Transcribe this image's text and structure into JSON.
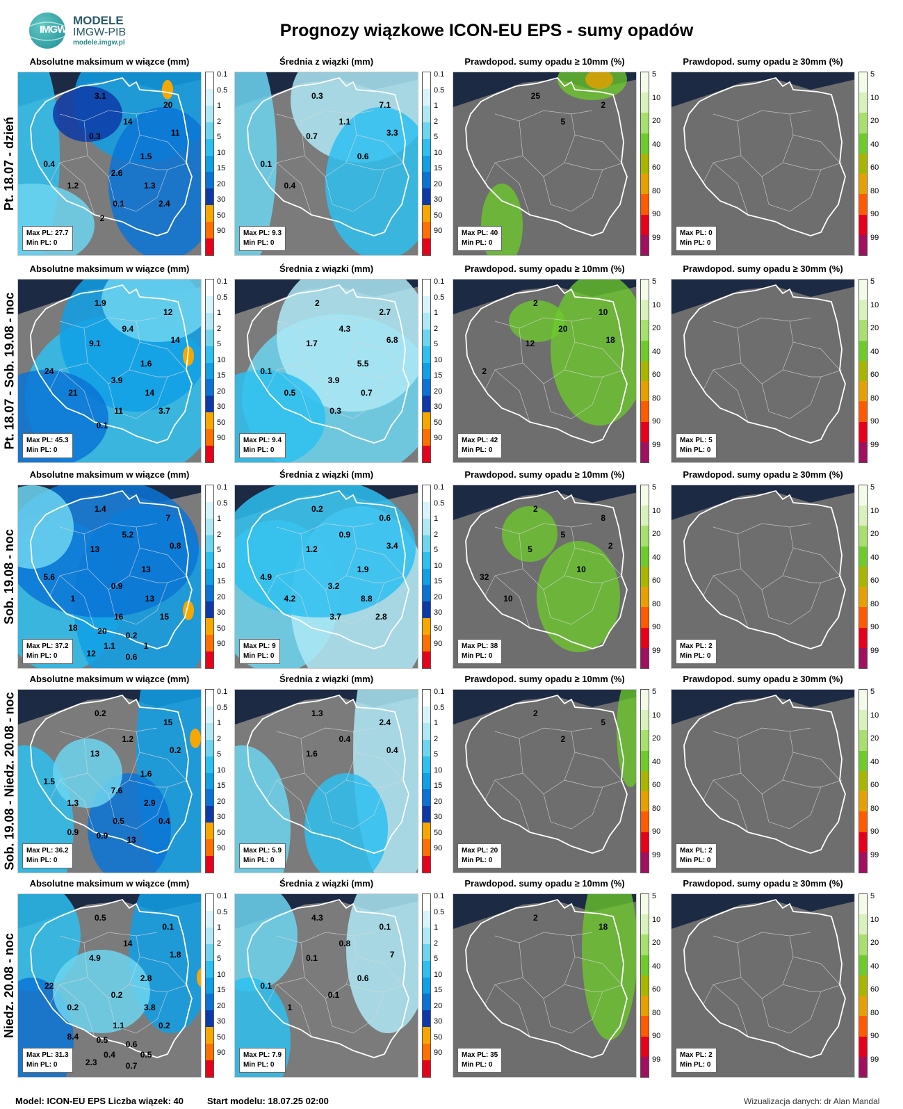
{
  "header": {
    "logo_text": "IMGW",
    "brand_line1": "MODELE",
    "brand_line2": "IMGW-PIB",
    "brand_url": "modele.imgw.pl",
    "title": "Prognozy wiązkowe ICON-EU EPS - sumy opadów"
  },
  "columns": [
    {
      "title": "Absolutne maksimum w wiązce (mm)",
      "type": "precip"
    },
    {
      "title": "Średnia z wiązki (mm)",
      "type": "precip"
    },
    {
      "title": "Prawdopod. sumy opadu ≥ 10mm (%)",
      "type": "prob"
    },
    {
      "title": "Prawdopod. sumy opadu ≥ 30mm (%)",
      "type": "prob"
    }
  ],
  "legends": {
    "precip": {
      "ticks": [
        "0.1",
        "0.5",
        "1",
        "2",
        "5",
        "10",
        "15",
        "20",
        "30",
        "50",
        "90"
      ],
      "colors": [
        "#ffffff",
        "#d9f3fa",
        "#aee8f5",
        "#6dd5f0",
        "#2ec0f0",
        "#10a0e6",
        "#0a74d6",
        "#0d3aa8",
        "#f7a800",
        "#ff7000",
        "#e8001a"
      ]
    },
    "prob": {
      "ticks": [
        "5",
        "10",
        "20",
        "40",
        "60",
        "80",
        "90",
        "99"
      ],
      "colors": [
        "#f3fbe9",
        "#d9f2bb",
        "#a7e06a",
        "#6dcc2a",
        "#a9b600",
        "#e7a000",
        "#ff5a00",
        "#e8001a",
        "#a0105e"
      ]
    }
  },
  "rows": [
    {
      "label": "Pt. 18.07 - dzień",
      "panels": [
        {
          "max": "Max PL: 27.7",
          "min": "Min PL: 0",
          "labels": [
            "3.1",
            "20",
            "14",
            "11",
            "0.3",
            "0.4",
            "1.5",
            "1.2",
            "2.6",
            "1.3",
            "0.1",
            "2.4",
            "2"
          ]
        },
        {
          "max": "Max PL: 9.3",
          "min": "Min PL: 0",
          "labels": [
            "0.3",
            "7.1",
            "1.1",
            "3.3",
            "0.7",
            "0.1",
            "0.6",
            "0.4"
          ]
        },
        {
          "max": "Max PL: 40",
          "min": "Min PL: 0",
          "labels": [
            "25",
            "2",
            "5"
          ]
        },
        {
          "max": "Max PL: 0",
          "min": "Min PL: 0",
          "labels": []
        }
      ]
    },
    {
      "label": "Pt. 18.07 - Sob. 19.08 - noc",
      "panels": [
        {
          "max": "Max PL: 45.3",
          "min": "Min PL: 0",
          "labels": [
            "1.9",
            "12",
            "9.4",
            "14",
            "9.1",
            "24",
            "1.6",
            "21",
            "3.9",
            "14",
            "11",
            "3.7",
            "0.1"
          ]
        },
        {
          "max": "Max PL: 9.4",
          "min": "Min PL: 0",
          "labels": [
            "2",
            "2.7",
            "4.3",
            "6.8",
            "1.7",
            "0.1",
            "5.5",
            "0.5",
            "3.9",
            "0.7",
            "0.3"
          ]
        },
        {
          "max": "Max PL: 42",
          "min": "Min PL: 0",
          "labels": [
            "2",
            "10",
            "20",
            "18",
            "12",
            "2"
          ]
        },
        {
          "max": "Max PL: 5",
          "min": "Min PL: 0",
          "labels": []
        }
      ]
    },
    {
      "label": "Sob. 19.08 - noc",
      "panels": [
        {
          "max": "Max PL: 37.2",
          "min": "Min PL: 0",
          "labels": [
            "1.4",
            "7",
            "5.2",
            "0.8",
            "13",
            "5.6",
            "13",
            "1",
            "0.9",
            "13",
            "16",
            "15",
            "20",
            "0.2",
            "18",
            "1.1",
            "1",
            "12",
            "0.6"
          ]
        },
        {
          "max": "Max PL: 9",
          "min": "Min PL: 0",
          "labels": [
            "0.2",
            "0.6",
            "0.9",
            "3.4",
            "1.2",
            "4.9",
            "1.9",
            "4.2",
            "3.2",
            "8.8",
            "3.7",
            "2.8"
          ]
        },
        {
          "max": "Max PL: 38",
          "min": "Min PL: 0",
          "labels": [
            "2",
            "8",
            "5",
            "2",
            "5",
            "32",
            "10",
            "10"
          ]
        },
        {
          "max": "Max PL: 2",
          "min": "Min PL: 0",
          "labels": []
        }
      ]
    },
    {
      "label": "Sob. 19.08 - Niedz. 20.08 - noc",
      "panels": [
        {
          "max": "Max PL: 36.2",
          "min": "Min PL: 0",
          "labels": [
            "0.2",
            "15",
            "1.2",
            "0.2",
            "13",
            "1.5",
            "1.6",
            "1.3",
            "7.6",
            "2.9",
            "0.5",
            "0.4",
            "0.9",
            "13",
            "0.9"
          ]
        },
        {
          "max": "Max PL: 5.9",
          "min": "Min PL: 0",
          "labels": [
            "1.3",
            "2.4",
            "0.4",
            "0.4",
            "1.6"
          ]
        },
        {
          "max": "Max PL: 20",
          "min": "Min PL: 0",
          "labels": [
            "2",
            "5",
            "2"
          ]
        },
        {
          "max": "Max PL: 2",
          "min": "Min PL: 0",
          "labels": []
        }
      ]
    },
    {
      "label": "Niedz. 20.08 - noc",
      "panels": [
        {
          "max": "Max PL: 31.3",
          "min": "Min PL: 0",
          "labels": [
            "0.5",
            "0.1",
            "14",
            "1.8",
            "4.9",
            "22",
            "2.8",
            "0.2",
            "0.2",
            "3.8",
            "1.1",
            "0.2",
            "0.5",
            "0.6",
            "8.4",
            "0.4",
            "0.5",
            "2.3",
            "0.7"
          ]
        },
        {
          "max": "Max PL: 7.9",
          "min": "Min PL: 0",
          "labels": [
            "4.3",
            "0.1",
            "0.8",
            "7",
            "0.1",
            "0.1",
            "0.6",
            "1",
            "0.1"
          ]
        },
        {
          "max": "Max PL: 35",
          "min": "Min PL: 0",
          "labels": [
            "2",
            "18"
          ]
        },
        {
          "max": "Max PL: 2",
          "min": "Min PL: 0",
          "labels": []
        }
      ]
    }
  ],
  "footer": {
    "model": "Model: ICON-EU EPS Liczba wiązek: 40",
    "start": "Start modelu: 18.07.25 02:00",
    "credit": "Wizualizacja danych: dr Alan Mandal"
  }
}
